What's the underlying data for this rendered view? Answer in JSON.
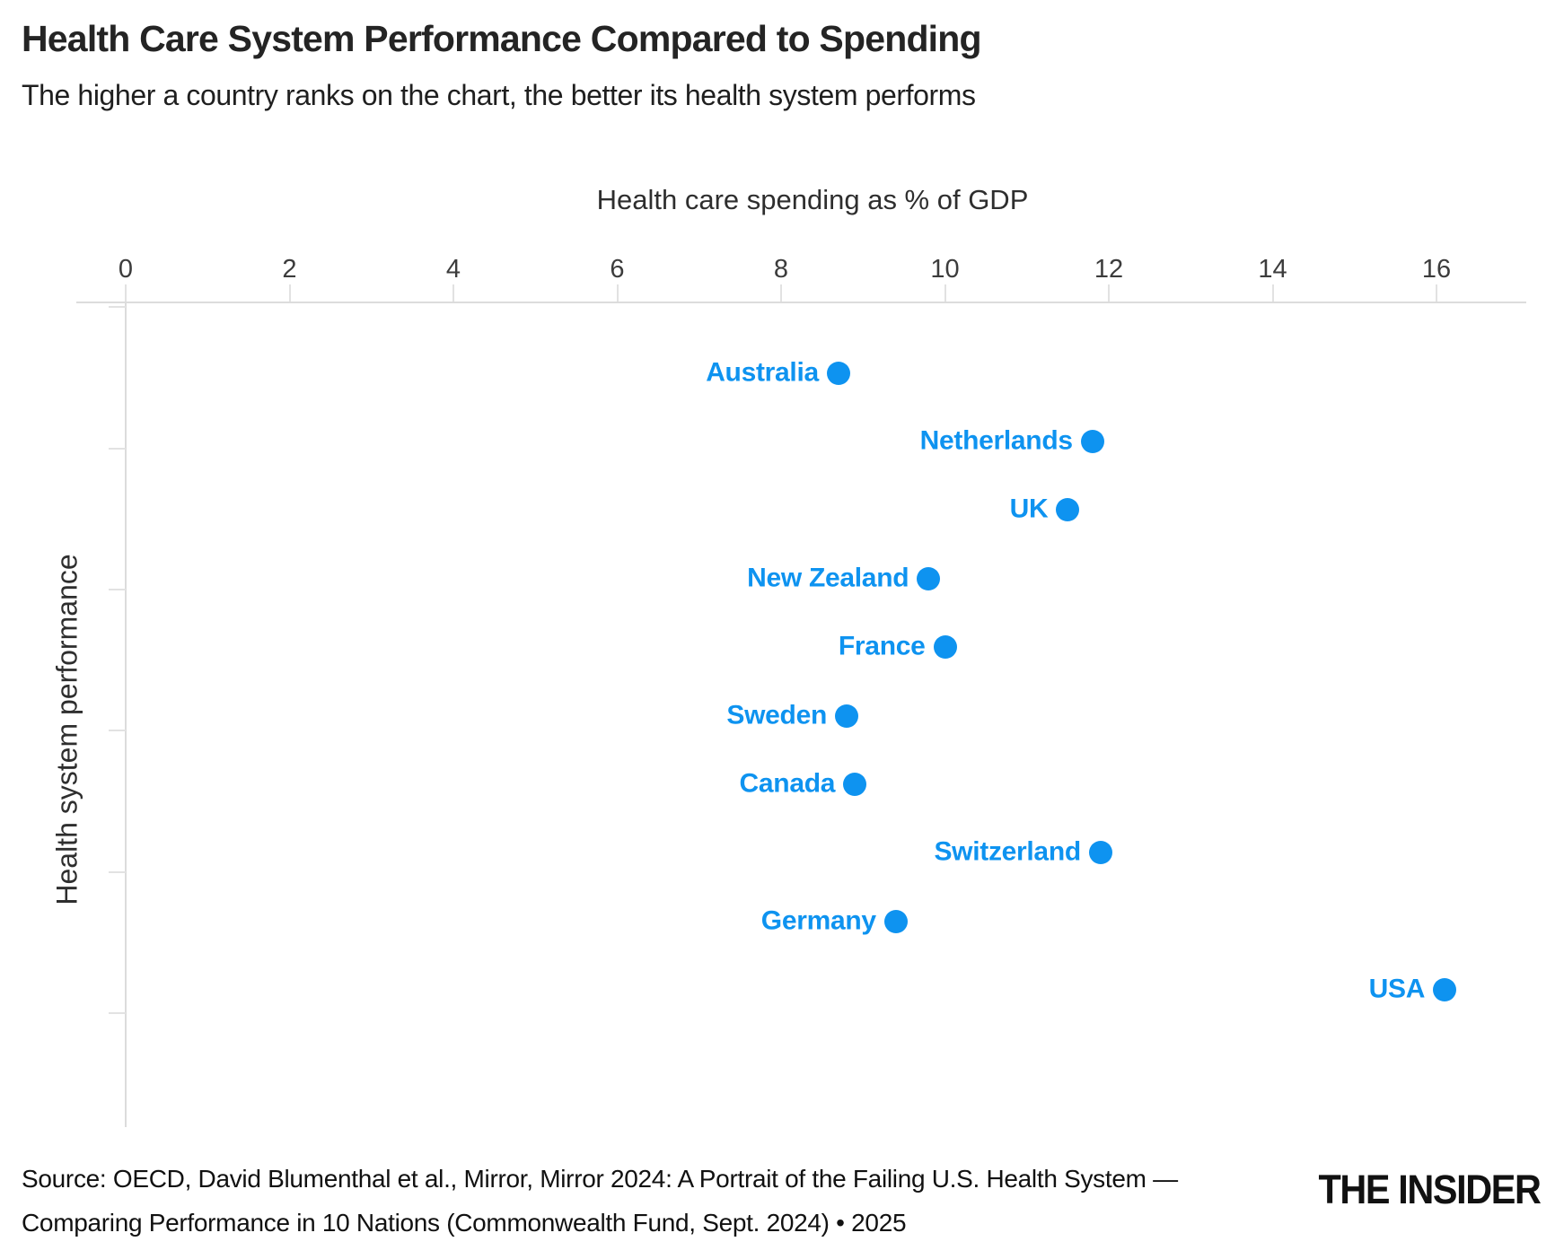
{
  "header": {
    "title": "Health Care System Performance Compared to Spending",
    "subtitle": "The higher a country ranks on the chart, the better its health system performs"
  },
  "chart_data": {
    "type": "scatter",
    "title": "Health Care System Performance Compared to Spending",
    "xlabel": "Health care spending as % of GDP",
    "ylabel": "Health system performance",
    "xlim": [
      0,
      17.1
    ],
    "x_ticks": [
      0,
      2,
      4,
      6,
      8,
      10,
      12,
      14,
      16
    ],
    "y_axis_note": "rank order top to bottom, 1 = best performing health system",
    "point_color": "#0e93f0",
    "points": [
      {
        "label": "Australia",
        "spending_pct_gdp": 8.7,
        "performance_rank": 1
      },
      {
        "label": "Netherlands",
        "spending_pct_gdp": 11.8,
        "performance_rank": 2
      },
      {
        "label": "UK",
        "spending_pct_gdp": 11.5,
        "performance_rank": 3
      },
      {
        "label": "New Zealand",
        "spending_pct_gdp": 9.8,
        "performance_rank": 4
      },
      {
        "label": "France",
        "spending_pct_gdp": 10.0,
        "performance_rank": 5
      },
      {
        "label": "Sweden",
        "spending_pct_gdp": 8.8,
        "performance_rank": 6
      },
      {
        "label": "Canada",
        "spending_pct_gdp": 8.9,
        "performance_rank": 7
      },
      {
        "label": "Switzerland",
        "spending_pct_gdp": 11.9,
        "performance_rank": 8
      },
      {
        "label": "Germany",
        "spending_pct_gdp": 9.4,
        "performance_rank": 9
      },
      {
        "label": "USA",
        "spending_pct_gdp": 16.1,
        "performance_rank": 10
      }
    ]
  },
  "footer": {
    "source_line1": "Source: OECD, David Blumenthal et al., Mirror, Mirror 2024: A Portrait of the Failing U.S. Health System —",
    "source_line2": "Comparing Performance in 10 Nations (Commonwealth Fund, Sept. 2024) • 2025",
    "logo_text": "THE INSIDER"
  }
}
